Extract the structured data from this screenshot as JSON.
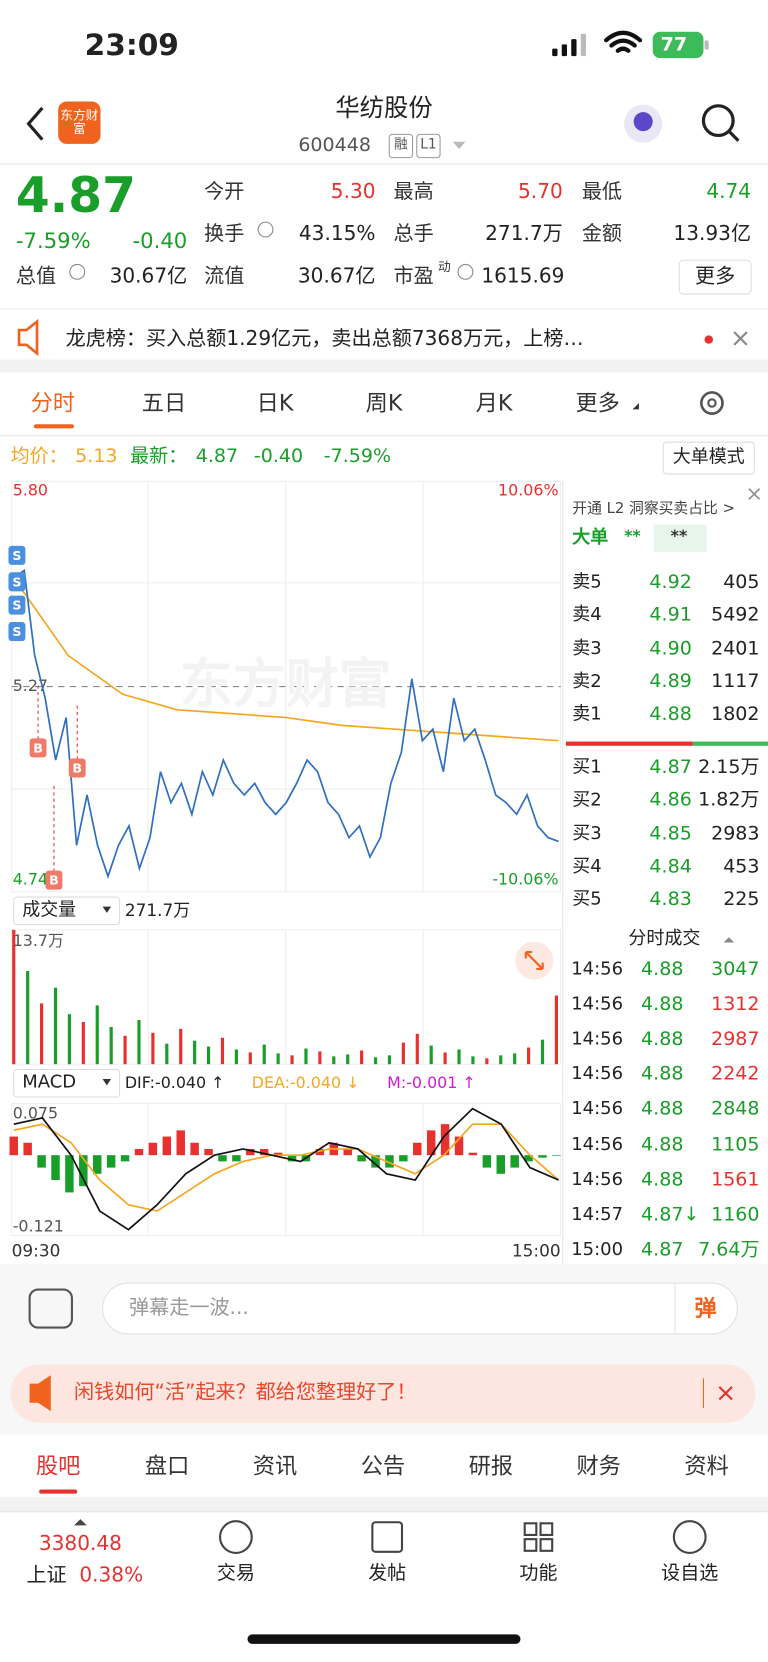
{
  "status": {
    "time": "23:09",
    "battery": "77"
  },
  "header": {
    "logo": "东方财富",
    "title": "华纺股份",
    "code": "600448",
    "badges": [
      "融",
      "L1"
    ]
  },
  "quote": {
    "price": "4.87",
    "change_pct": "-7.59%",
    "change": "-0.40",
    "fields": [
      {
        "label": "今开",
        "value": "5.30",
        "color": "#e8312f"
      },
      {
        "label": "最高",
        "value": "5.70",
        "color": "#e8312f"
      },
      {
        "label": "最低",
        "value": "4.74",
        "color": "#1a9e2a"
      },
      {
        "label": "换手",
        "value": "43.15%",
        "color": "#222222"
      },
      {
        "label": "总手",
        "value": "271.7万",
        "color": "#222222"
      },
      {
        "label": "金额",
        "value": "13.93亿",
        "color": "#222222"
      },
      {
        "label": "总值",
        "value": "30.67亿",
        "color": "#222222"
      },
      {
        "label": "流值",
        "value": "30.67亿",
        "color": "#222222"
      },
      {
        "label": "市盈",
        "sup": "动",
        "value": "1615.69",
        "color": "#222222"
      }
    ],
    "more": "更多"
  },
  "notice": {
    "text": "龙虎榜：买入总额1.29亿元，卖出总额7368万元，上榜…"
  },
  "tabs": [
    "分时",
    "五日",
    "日K",
    "周K",
    "月K",
    "更多"
  ],
  "summary": {
    "avg_label": "均价：",
    "avg": "5.13",
    "last_label": "最新：",
    "last": "4.87",
    "change": "-0.40",
    "change_pct": "-7.59%",
    "mode_button": "大单模式"
  },
  "intraday": {
    "watermark": "东方财富",
    "ylim": [
      4.74,
      5.8
    ],
    "yticks": [
      {
        "value": 5.8,
        "label": "5.80"
      },
      5.27,
      4.74
    ],
    "y2lim": [
      -10.06,
      10.06
    ],
    "y2ticks": [
      {
        "value": 10.06,
        "label": "10.06%"
      },
      {
        "value": -10.06,
        "label": "-10.06%"
      }
    ],
    "reference": 5.27,
    "price": {
      "color": "#2f6fbf",
      "values": [
        5.55,
        5.57,
        5.35,
        5.24,
        5.08,
        5.19,
        4.86,
        4.99,
        4.86,
        4.78,
        4.86,
        4.91,
        4.8,
        4.88,
        5.05,
        4.97,
        5.02,
        4.94,
        5.05,
        4.99,
        5.08,
        5.02,
        4.99,
        5.02,
        4.97,
        4.94,
        4.97,
        5.02,
        5.08,
        5.05,
        4.97,
        4.94,
        4.88,
        4.91,
        4.83,
        4.88,
        5.02,
        5.1,
        5.29,
        5.13,
        5.16,
        5.05,
        5.24,
        5.13,
        5.16,
        5.08,
        4.99,
        4.97,
        4.94,
        4.99,
        4.91,
        4.88,
        4.87
      ]
    },
    "avg_price": {
      "color": "#f5a623",
      "values": [
        5.55,
        5.35,
        5.25,
        5.21,
        5.2,
        5.19,
        5.17,
        5.16,
        5.15,
        5.14,
        5.13
      ]
    },
    "markers": [
      "S",
      "S",
      "S",
      "S",
      "B",
      "B",
      "B"
    ],
    "xticks": [
      "09:30",
      "15:00"
    ]
  },
  "volume": {
    "label": "成交量",
    "total": "271.7万",
    "ylim": [
      0,
      13.7
    ],
    "yticks": [
      {
        "value": 13.7,
        "label": "13.7万"
      }
    ],
    "values": [
      13.7,
      9.5,
      6.2,
      7.8,
      5.1,
      4.3,
      6.0,
      3.8,
      2.9,
      4.5,
      3.2,
      2.1,
      3.6,
      2.4,
      1.8,
      2.7,
      1.5,
      1.2,
      2.0,
      1.1,
      0.9,
      1.6,
      1.3,
      0.8,
      1.0,
      1.4,
      0.7,
      0.9,
      2.2,
      3.1,
      1.9,
      1.2,
      1.5,
      0.8,
      0.6,
      0.9,
      1.1,
      1.7,
      2.5,
      7.0
    ],
    "colors": [
      "#e8312f",
      "#1a9e2a",
      "#e8312f",
      "#1a9e2a",
      "#1a9e2a",
      "#e8312f",
      "#1a9e2a",
      "#1a9e2a",
      "#e8312f",
      "#1a9e2a",
      "#e8312f",
      "#1a9e2a",
      "#e8312f",
      "#1a9e2a",
      "#1a9e2a",
      "#e8312f",
      "#1a9e2a",
      "#e8312f",
      "#1a9e2a",
      "#1a9e2a",
      "#e8312f",
      "#1a9e2a",
      "#e8312f",
      "#1a9e2a",
      "#1a9e2a",
      "#e8312f",
      "#1a9e2a",
      "#1a9e2a",
      "#e8312f",
      "#e8312f",
      "#1a9e2a",
      "#e8312f",
      "#1a9e2a",
      "#1a9e2a",
      "#e8312f",
      "#1a9e2a",
      "#1a9e2a",
      "#e8312f",
      "#1a9e2a",
      "#e8312f"
    ]
  },
  "macd": {
    "label": "MACD",
    "dif_label": "DIF:-0.040 ↑",
    "dea_label": "DEA:-0.040 ↓",
    "m_label": "M:-0.001 ↑",
    "ylim": [
      -0.121,
      0.075
    ],
    "yticks": [
      0.075,
      -0.121
    ],
    "dif": {
      "color": "#111111",
      "values": [
        0.05,
        0.06,
        0.0,
        -0.09,
        -0.12,
        -0.08,
        -0.03,
        0.0,
        0.01,
        0.0,
        -0.01,
        0.02,
        0.01,
        -0.03,
        -0.04,
        0.03,
        0.075,
        0.05,
        -0.02,
        -0.04
      ]
    },
    "dea": {
      "color": "#f5a623",
      "values": [
        0.04,
        0.05,
        0.02,
        -0.04,
        -0.08,
        -0.09,
        -0.06,
        -0.03,
        -0.01,
        0.0,
        0.0,
        0.01,
        0.01,
        -0.01,
        -0.03,
        0.0,
        0.05,
        0.05,
        0.0,
        -0.04
      ]
    },
    "m": {
      "values": [
        0.03,
        0.02,
        -0.02,
        -0.04,
        -0.06,
        -0.05,
        -0.03,
        -0.02,
        -0.01,
        0.01,
        0.02,
        0.03,
        0.04,
        0.02,
        0.01,
        -0.01,
        -0.01,
        0.01,
        0.01,
        0.004,
        -0.01,
        -0.01,
        0.01,
        0.02,
        0.01,
        -0.01,
        -0.02,
        -0.02,
        -0.01,
        0.02,
        0.04,
        0.05,
        0.03,
        0.004,
        -0.02,
        -0.03,
        -0.02,
        -0.01,
        -0.004,
        -0.001
      ]
    }
  },
  "orderbook": {
    "promo": "开通 L2 洞察买卖占比 >",
    "big_label": "大单",
    "big_buy": "**",
    "big_sell": "**",
    "asks": [
      {
        "label": "卖5",
        "price": "4.92",
        "volume": "405"
      },
      {
        "label": "卖4",
        "price": "4.91",
        "volume": "5492"
      },
      {
        "label": "卖3",
        "price": "4.90",
        "volume": "2401"
      },
      {
        "label": "卖2",
        "price": "4.89",
        "volume": "1117"
      },
      {
        "label": "卖1",
        "price": "4.88",
        "volume": "1802"
      }
    ],
    "bids": [
      {
        "label": "买1",
        "price": "4.87",
        "volume": "2.15万"
      },
      {
        "label": "买2",
        "price": "4.86",
        "volume": "1.82万"
      },
      {
        "label": "买3",
        "price": "4.85",
        "volume": "2983"
      },
      {
        "label": "买4",
        "price": "4.84",
        "volume": "453"
      },
      {
        "label": "买5",
        "price": "4.83",
        "volume": "225"
      }
    ]
  },
  "trades": {
    "title": "分时成交",
    "rows": [
      {
        "time": "14:56",
        "price": "4.88",
        "volume": "3047",
        "color": "#1a9e2a"
      },
      {
        "time": "14:56",
        "price": "4.88",
        "volume": "1312",
        "color": "#e8312f"
      },
      {
        "time": "14:56",
        "price": "4.88",
        "volume": "2987",
        "color": "#e8312f"
      },
      {
        "time": "14:56",
        "price": "4.88",
        "volume": "2242",
        "color": "#e8312f"
      },
      {
        "time": "14:56",
        "price": "4.88",
        "volume": "2848",
        "color": "#1a9e2a"
      },
      {
        "time": "14:56",
        "price": "4.88",
        "volume": "1105",
        "color": "#1a9e2a"
      },
      {
        "time": "14:56",
        "price": "4.88",
        "volume": "1561",
        "color": "#e8312f"
      },
      {
        "time": "14:57",
        "price": "4.87↓",
        "volume": "1160",
        "color": "#1a9e2a"
      },
      {
        "time": "15:00",
        "price": "4.87",
        "volume": "7.64万",
        "color": "#1a9e2a"
      }
    ]
  },
  "danmaku": {
    "placeholder": "弹幕走一波...",
    "button": "弹"
  },
  "ad": {
    "text": "闲钱如何“活”起来？都给您整理好了！"
  },
  "bottom_tabs": [
    "股吧",
    "盘口",
    "资讯",
    "公告",
    "研报",
    "财务",
    "资料"
  ],
  "nav": {
    "index_value": "3380.48",
    "index_name": "上证",
    "index_change": "0.38%",
    "items": [
      "交易",
      "发帖",
      "功能",
      "设自选"
    ]
  }
}
